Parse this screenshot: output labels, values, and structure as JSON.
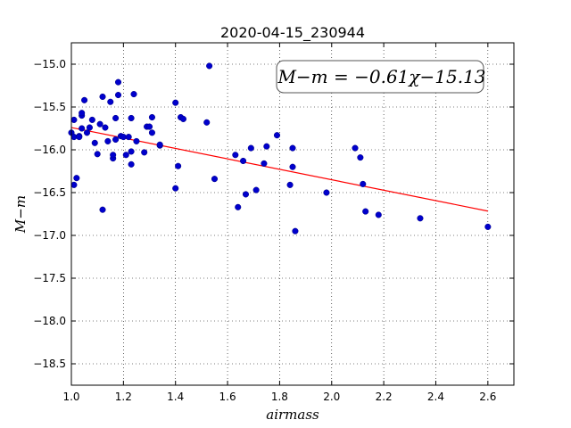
{
  "chart_data": {
    "type": "scatter",
    "title": "2020-04-15_230944",
    "xlabel": "airmass",
    "ylabel": "M−m",
    "xlim": [
      1.0,
      2.7
    ],
    "ylim": [
      -18.75,
      -14.75
    ],
    "y_inverted": true,
    "grid": true,
    "xticks": [
      1.0,
      1.2,
      1.4,
      1.6,
      1.8,
      2.0,
      2.2,
      2.4,
      2.6
    ],
    "xtick_labels": [
      "1.0",
      "1.2",
      "1.4",
      "1.6",
      "1.8",
      "2.0",
      "2.2",
      "2.4",
      "2.6"
    ],
    "yticks": [
      -15.0,
      -15.5,
      -16.0,
      -16.5,
      -17.0,
      -17.5,
      -18.0,
      -18.5
    ],
    "ytick_labels": [
      "−15.0",
      "−15.5",
      "−16.0",
      "−16.5",
      "−17.0",
      "−17.5",
      "−18.0",
      "−18.5"
    ],
    "annotation": "M−m = −0.61χ−15.13",
    "marker_color": "#0000cc",
    "fit_color": "#ff0000",
    "series": [
      {
        "marker": "circle",
        "x": [
          1.0,
          1.01,
          1.01,
          1.01,
          1.02,
          1.03,
          1.03,
          1.04,
          1.04,
          1.04,
          1.05,
          1.06,
          1.07,
          1.08,
          1.09,
          1.1,
          1.11,
          1.12,
          1.12,
          1.13,
          1.14,
          1.15,
          1.16,
          1.16,
          1.17,
          1.17,
          1.18,
          1.18,
          1.19,
          1.2,
          1.21,
          1.22,
          1.23,
          1.23,
          1.23,
          1.24,
          1.25,
          1.28,
          1.29,
          1.3,
          1.31,
          1.31,
          1.34,
          1.34,
          1.4,
          1.4,
          1.41,
          1.42,
          1.43,
          1.52,
          1.53,
          1.55,
          1.63,
          1.64,
          1.66,
          1.67,
          1.69,
          1.71,
          1.74,
          1.75,
          1.79,
          1.84,
          1.85,
          1.85,
          1.86,
          1.98,
          2.09,
          2.11,
          2.12,
          2.13,
          2.18,
          2.34,
          2.6
        ],
        "y": [
          -15.8,
          -16.41,
          -15.65,
          -15.85,
          -16.33,
          -15.84,
          -15.85,
          -15.75,
          -15.6,
          -15.57,
          -15.42,
          -15.8,
          -15.74,
          -15.65,
          -15.92,
          -16.05,
          -15.7,
          -16.7,
          -15.38,
          -15.74,
          -15.9,
          -15.44,
          -16.1,
          -16.06,
          -15.88,
          -15.63,
          -15.36,
          -15.21,
          -15.84,
          -15.85,
          -16.06,
          -15.85,
          -16.17,
          -16.02,
          -15.63,
          -15.35,
          -15.9,
          -16.03,
          -15.73,
          -15.73,
          -15.62,
          -15.8,
          -15.95,
          -15.94,
          -15.45,
          -16.45,
          -16.19,
          -15.62,
          -15.64,
          -15.68,
          -15.02,
          -16.34,
          -16.06,
          -16.67,
          -16.13,
          -16.52,
          -15.98,
          -16.47,
          -16.16,
          -15.96,
          -15.83,
          -16.41,
          -15.98,
          -16.2,
          -16.95,
          -16.5,
          -15.98,
          -16.09,
          -16.4,
          -16.72,
          -16.76,
          -16.8,
          -16.9
        ]
      }
    ],
    "fit_line": {
      "slope": -0.61,
      "intercept": -15.13,
      "x_range": [
        1.0,
        2.6
      ]
    }
  }
}
